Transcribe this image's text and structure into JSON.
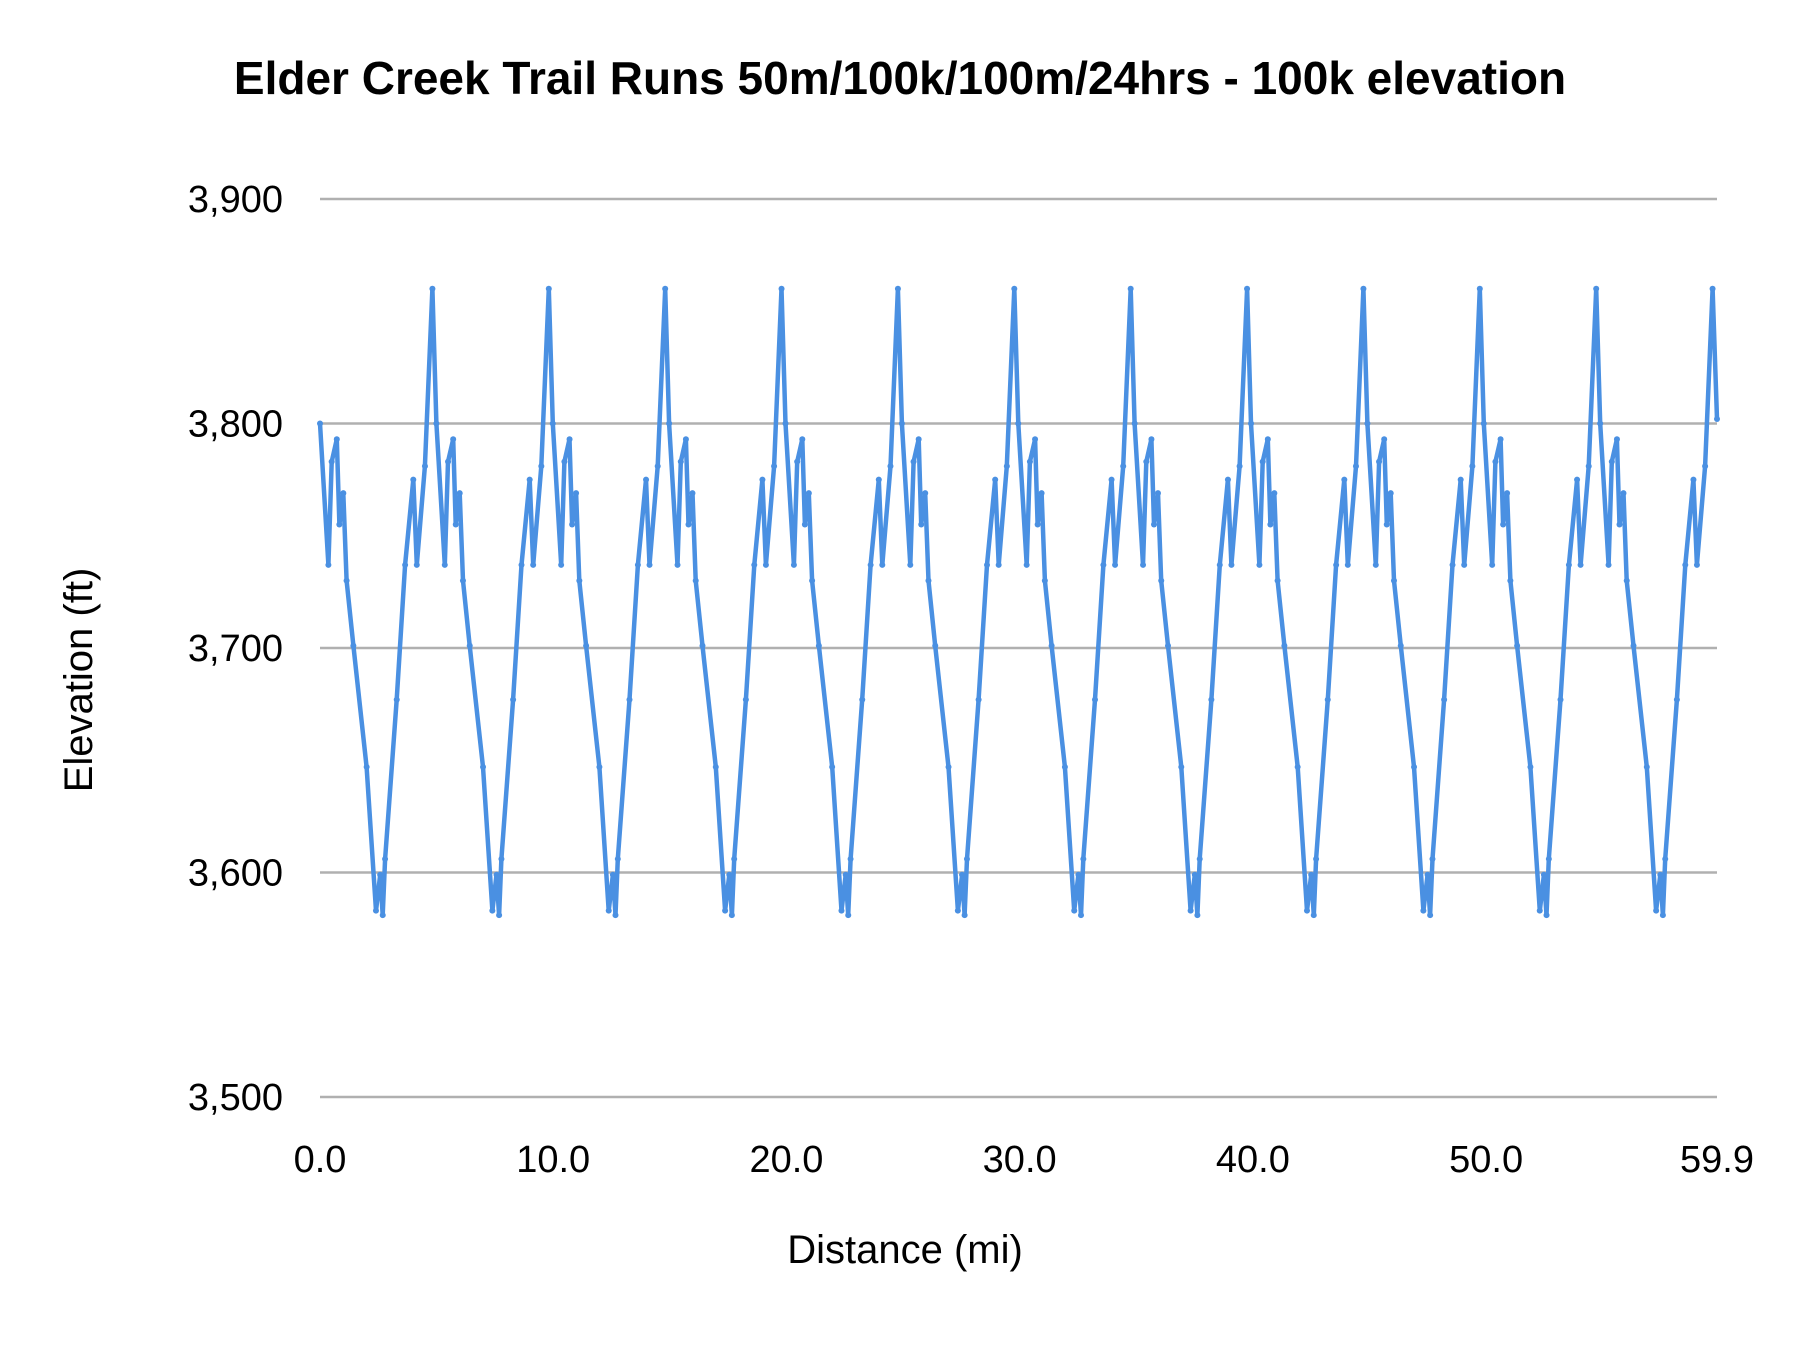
{
  "chart_data": {
    "type": "line",
    "title": "Elder Creek Trail Runs 50m/100k/100m/24hrs - 100k elevation",
    "xlabel": "Distance (mi)",
    "ylabel": "Elevation (ft)",
    "xlim": [
      0,
      59.9
    ],
    "ylim": [
      3500,
      3900
    ],
    "grid": true,
    "color": "#4a90e2",
    "x_ticks": [
      0,
      10,
      20,
      30,
      40,
      50,
      59.9
    ],
    "x_tick_labels": [
      "0.0",
      "10.0",
      "20.0",
      "30.0",
      "40.0",
      "50.0",
      "59.9"
    ],
    "y_ticks": [
      3500,
      3600,
      3700,
      3800,
      3900
    ],
    "y_tick_labels": [
      "3,500",
      "3,600",
      "3,700",
      "3,800",
      "3,900"
    ],
    "series": [
      {
        "x": [
          0,
          0.36,
          0.5,
          0.72,
          0.83,
          1.0,
          1.14,
          1.43,
          2.0,
          2.4,
          2.58,
          2.69,
          2.79,
          3.29,
          3.65,
          4.0,
          4.15,
          4.5,
          4.82,
          4.99,
          5.35,
          5.49,
          5.71,
          5.82,
          5.99,
          6.13,
          6.42,
          6.99,
          7.39,
          7.57,
          7.68,
          7.78,
          8.28,
          8.64,
          8.99,
          9.14,
          9.49,
          9.81,
          9.98,
          10.34,
          10.48,
          10.7,
          10.81,
          10.98,
          11.12,
          11.41,
          11.98,
          12.38,
          12.56,
          12.67,
          12.77,
          13.27,
          13.63,
          13.98,
          14.13,
          14.48,
          14.8,
          14.97,
          15.33,
          15.47,
          15.69,
          15.8,
          15.97,
          16.11,
          16.4,
          16.97,
          17.37,
          17.55,
          17.66,
          17.76,
          18.26,
          18.62,
          18.97,
          19.12,
          19.47,
          19.79,
          19.96,
          20.32,
          20.46,
          20.68,
          20.79,
          20.96,
          21.1,
          21.39,
          21.96,
          22.36,
          22.54,
          22.65,
          22.75,
          23.25,
          23.61,
          23.96,
          24.11,
          24.46,
          24.78,
          24.95,
          25.31,
          25.45,
          25.67,
          25.78,
          25.95,
          26.09,
          26.38,
          26.95,
          27.35,
          27.53,
          27.64,
          27.74,
          28.24,
          28.6,
          28.95,
          29.1,
          29.45,
          29.77,
          29.94,
          30.3,
          30.44,
          30.66,
          30.77,
          30.94,
          31.08,
          31.37,
          31.94,
          32.34,
          32.52,
          32.63,
          32.73,
          33.23,
          33.59,
          33.94,
          34.09,
          34.44,
          34.76,
          34.93,
          35.29,
          35.43,
          35.65,
          35.76,
          35.93,
          36.07,
          36.36,
          36.93,
          37.33,
          37.51,
          37.62,
          37.72,
          38.22,
          38.58,
          38.93,
          39.08,
          39.43,
          39.75,
          39.92,
          40.28,
          40.42,
          40.64,
          40.75,
          40.92,
          41.06,
          41.35,
          41.92,
          42.32,
          42.5,
          42.61,
          42.71,
          43.21,
          43.57,
          43.92,
          44.07,
          44.42,
          44.74,
          44.91,
          45.27,
          45.41,
          45.63,
          45.74,
          45.91,
          46.05,
          46.34,
          46.91,
          47.31,
          47.49,
          47.6,
          47.7,
          48.2,
          48.56,
          48.91,
          49.06,
          49.41,
          49.73,
          49.9,
          50.26,
          50.4,
          50.62,
          50.73,
          50.9,
          51.04,
          51.33,
          51.9,
          52.3,
          52.48,
          52.59,
          52.69,
          53.19,
          53.55,
          53.9,
          54.05,
          54.4,
          54.72,
          54.89,
          55.25,
          55.39,
          55.61,
          55.72,
          55.89,
          56.03,
          56.32,
          56.89,
          57.29,
          57.47,
          57.58,
          57.68,
          58.18,
          58.54,
          58.89,
          59.04,
          59.39,
          59.71,
          59.9
        ],
        "y": [
          3800,
          3737,
          3783,
          3793,
          3755,
          3769,
          3730,
          3701,
          3647,
          3583,
          3599,
          3581,
          3606,
          3677,
          3737,
          3775,
          3737,
          3781,
          3860,
          3800,
          3737,
          3783,
          3793,
          3755,
          3769,
          3730,
          3701,
          3647,
          3583,
          3599,
          3581,
          3606,
          3677,
          3737,
          3775,
          3737,
          3781,
          3860,
          3800,
          3737,
          3783,
          3793,
          3755,
          3769,
          3730,
          3701,
          3647,
          3583,
          3599,
          3581,
          3606,
          3677,
          3737,
          3775,
          3737,
          3781,
          3860,
          3800,
          3737,
          3783,
          3793,
          3755,
          3769,
          3730,
          3701,
          3647,
          3583,
          3599,
          3581,
          3606,
          3677,
          3737,
          3775,
          3737,
          3781,
          3860,
          3800,
          3737,
          3783,
          3793,
          3755,
          3769,
          3730,
          3701,
          3647,
          3583,
          3599,
          3581,
          3606,
          3677,
          3737,
          3775,
          3737,
          3781,
          3860,
          3800,
          3737,
          3783,
          3793,
          3755,
          3769,
          3730,
          3701,
          3647,
          3583,
          3599,
          3581,
          3606,
          3677,
          3737,
          3775,
          3737,
          3781,
          3860,
          3800,
          3737,
          3783,
          3793,
          3755,
          3769,
          3730,
          3701,
          3647,
          3583,
          3599,
          3581,
          3606,
          3677,
          3737,
          3775,
          3737,
          3781,
          3860,
          3800,
          3737,
          3783,
          3793,
          3755,
          3769,
          3730,
          3701,
          3647,
          3583,
          3599,
          3581,
          3606,
          3677,
          3737,
          3775,
          3737,
          3781,
          3860,
          3800,
          3737,
          3783,
          3793,
          3755,
          3769,
          3730,
          3701,
          3647,
          3583,
          3599,
          3581,
          3606,
          3677,
          3737,
          3775,
          3737,
          3781,
          3860,
          3800,
          3737,
          3783,
          3793,
          3755,
          3769,
          3730,
          3701,
          3647,
          3583,
          3599,
          3581,
          3606,
          3677,
          3737,
          3775,
          3737,
          3781,
          3860,
          3800,
          3737,
          3783,
          3793,
          3755,
          3769,
          3730,
          3701,
          3647,
          3583,
          3599,
          3581,
          3606,
          3677,
          3737,
          3775,
          3737,
          3781,
          3860,
          3800,
          3737,
          3783,
          3793,
          3755,
          3769,
          3730,
          3701,
          3647,
          3583,
          3599,
          3581,
          3606,
          3677,
          3737,
          3775,
          3737,
          3781,
          3860,
          3802
        ]
      }
    ]
  }
}
